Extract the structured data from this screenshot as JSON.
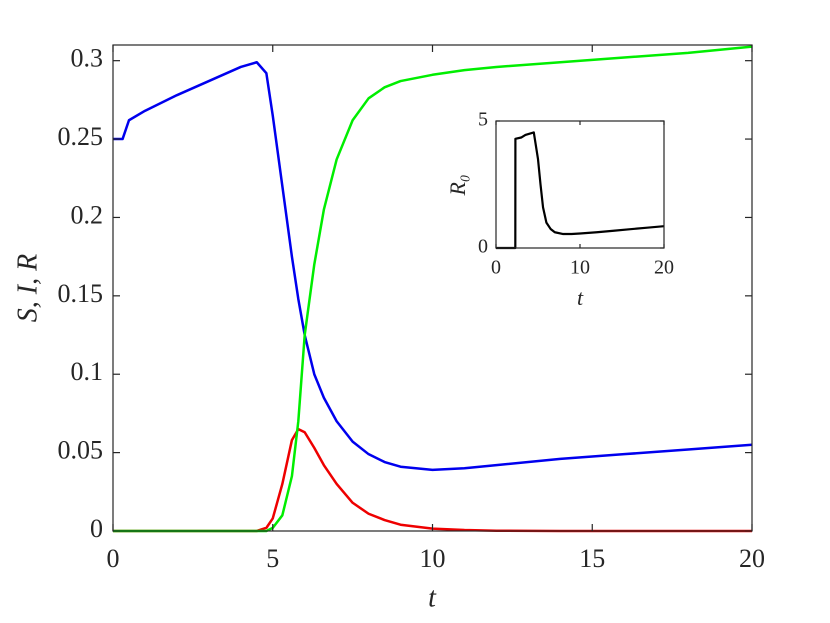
{
  "chart_data": [
    {
      "type": "line",
      "xlabel": "t",
      "ylabel": "S, I, R",
      "xlim": [
        0,
        20
      ],
      "ylim": [
        0,
        0.31
      ],
      "xticks": [
        0,
        5,
        10,
        15,
        20
      ],
      "yticks": [
        0,
        0.05,
        0.1,
        0.15,
        0.2,
        0.25,
        0.3
      ],
      "x": [
        0,
        0.3,
        0.5,
        1,
        2,
        3,
        4,
        4.5,
        4.8,
        5,
        5.3,
        5.6,
        5.8,
        6,
        6.3,
        6.6,
        7,
        7.5,
        8,
        8.5,
        9,
        10,
        11,
        12,
        14,
        16,
        18,
        20
      ],
      "series": [
        {
          "color": "#0000ee",
          "values": [
            0.25,
            0.25,
            0.262,
            0.268,
            0.278,
            0.287,
            0.296,
            0.299,
            0.292,
            0.265,
            0.22,
            0.175,
            0.148,
            0.125,
            0.1,
            0.085,
            0.07,
            0.057,
            0.049,
            0.044,
            0.041,
            0.039,
            0.04,
            0.042,
            0.046,
            0.049,
            0.052,
            0.055
          ]
        },
        {
          "color": "#ee0000",
          "values": [
            0,
            0,
            0,
            0,
            0,
            0,
            0,
            0,
            0.002,
            0.008,
            0.03,
            0.058,
            0.065,
            0.063,
            0.053,
            0.042,
            0.03,
            0.018,
            0.011,
            0.007,
            0.004,
            0.0015,
            0.0006,
            0.0002,
            0,
            0,
            0,
            0
          ]
        },
        {
          "color": "#00ee00",
          "values": [
            0,
            0,
            0,
            0,
            0,
            0,
            0,
            0,
            0,
            0.002,
            0.01,
            0.035,
            0.07,
            0.125,
            0.17,
            0.205,
            0.237,
            0.262,
            0.276,
            0.283,
            0.287,
            0.291,
            0.294,
            0.296,
            0.299,
            0.302,
            0.305,
            0.309
          ]
        }
      ]
    },
    {
      "type": "line",
      "xlabel": "t",
      "ylabel": "R₀",
      "xlim": [
        0,
        20
      ],
      "ylim": [
        0,
        5
      ],
      "xticks": [
        0,
        10,
        20
      ],
      "yticks": [
        0,
        5
      ],
      "x": [
        0,
        2.3,
        2.31,
        3,
        3.5,
        4,
        4.5,
        5,
        5.3,
        5.6,
        6,
        6.5,
        7,
        8,
        9,
        10,
        12,
        14,
        16,
        18,
        20
      ],
      "series": [
        {
          "color": "#000000",
          "values": [
            0,
            0,
            4.3,
            4.35,
            4.45,
            4.5,
            4.55,
            3.5,
            2.5,
            1.6,
            1.0,
            0.75,
            0.62,
            0.55,
            0.55,
            0.57,
            0.62,
            0.68,
            0.74,
            0.8,
            0.86
          ]
        }
      ]
    }
  ]
}
